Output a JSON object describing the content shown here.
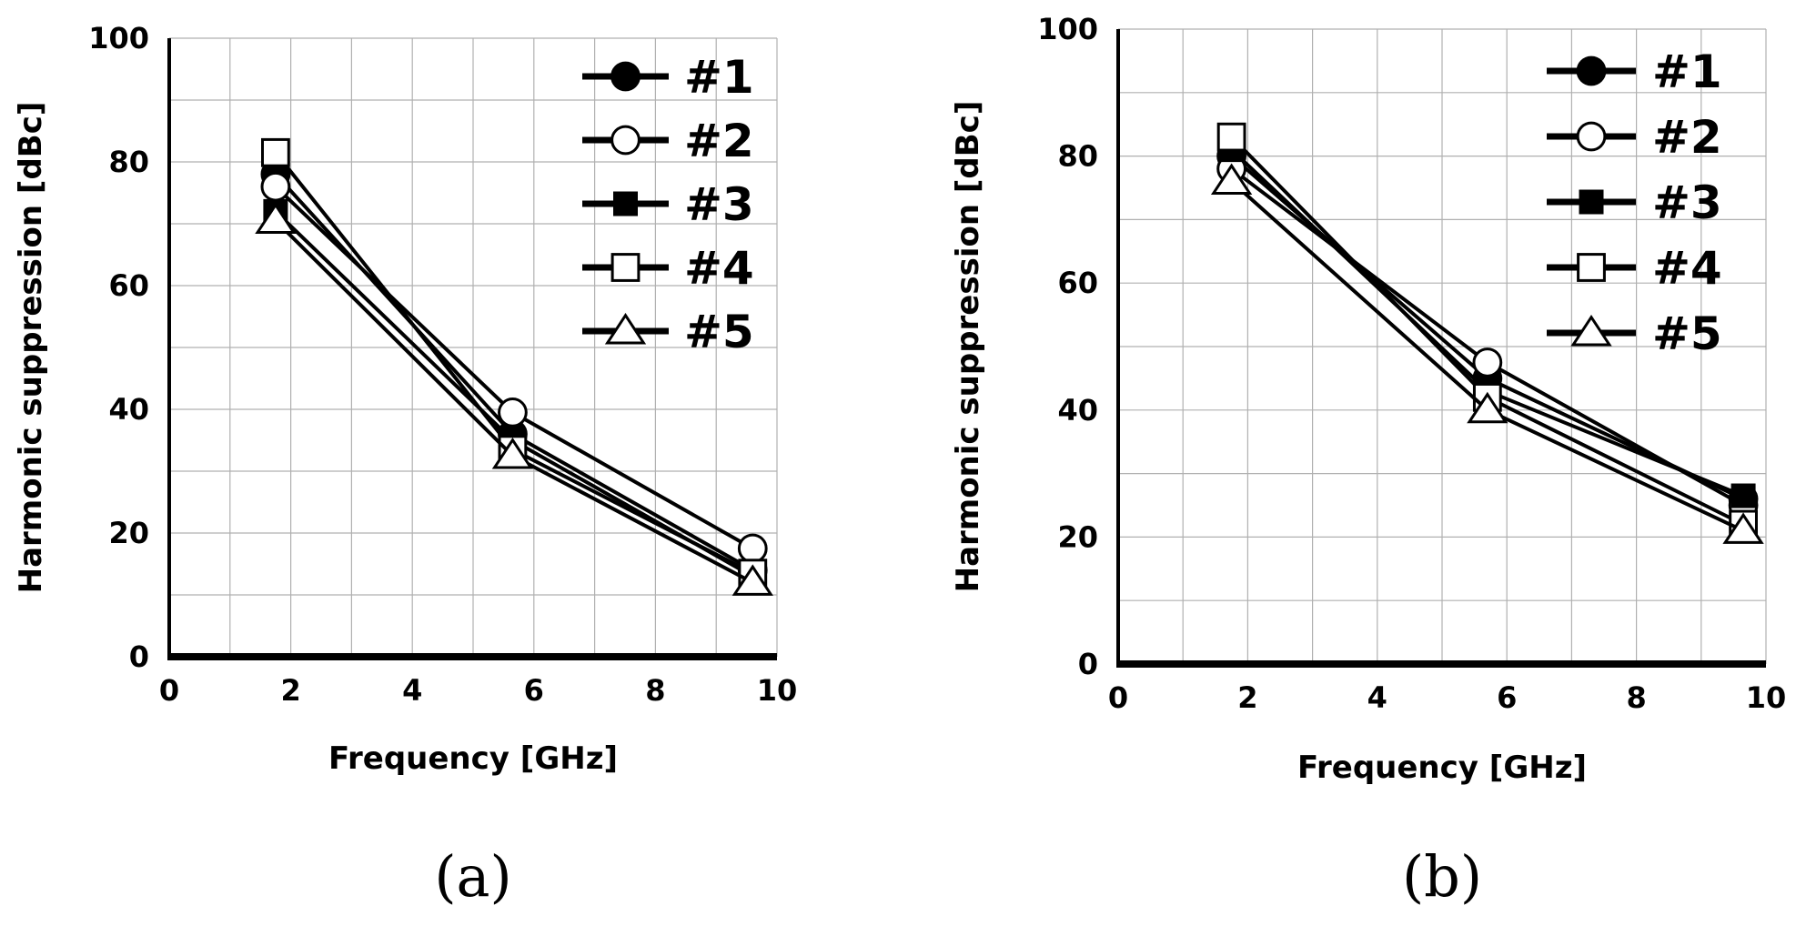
{
  "chart_data": [
    {
      "type": "line",
      "panel_label": "(a)",
      "xlabel": "Frequency [GHz]",
      "ylabel": "Harmonic suppression [dBc]",
      "xlim": [
        0,
        10
      ],
      "ylim": [
        0,
        100
      ],
      "xticks": [
        "0",
        "2",
        "4",
        "6",
        "8",
        "10"
      ],
      "yticks": [
        "0",
        "20",
        "40",
        "60",
        "80",
        "100"
      ],
      "x": [
        1.75,
        5.65,
        9.6
      ],
      "grid": true,
      "legend_position": "top-right",
      "series": [
        {
          "name": "#1",
          "marker": "filled-circle",
          "values": [
            78,
            36,
            14
          ]
        },
        {
          "name": "#2",
          "marker": "open-circle",
          "values": [
            76,
            39.5,
            17.5
          ]
        },
        {
          "name": "#3",
          "marker": "filled-square",
          "values": [
            72,
            35,
            13
          ]
        },
        {
          "name": "#4",
          "marker": "open-square",
          "values": [
            81.5,
            33.5,
            13.5
          ]
        },
        {
          "name": "#5",
          "marker": "open-triangle",
          "values": [
            70.5,
            32.5,
            12
          ]
        }
      ]
    },
    {
      "type": "line",
      "panel_label": "(b)",
      "xlabel": "Frequency [GHz]",
      "ylabel": "Harmonic suppression [dBc]",
      "xlim": [
        0,
        10
      ],
      "ylim": [
        0,
        100
      ],
      "xticks": [
        "0",
        "2",
        "4",
        "6",
        "8",
        "10"
      ],
      "yticks": [
        "0",
        "20",
        "40",
        "60",
        "80",
        "100"
      ],
      "x": [
        1.75,
        5.7,
        9.65
      ],
      "grid": true,
      "legend_position": "top-right",
      "series": [
        {
          "name": "#1",
          "marker": "filled-circle",
          "values": [
            80,
            45,
            26
          ]
        },
        {
          "name": "#2",
          "marker": "open-circle",
          "values": [
            78,
            47.5,
            25
          ]
        },
        {
          "name": "#3",
          "marker": "filled-square",
          "values": [
            81,
            43,
            26.5
          ]
        },
        {
          "name": "#4",
          "marker": "open-square",
          "values": [
            83,
            42,
            22
          ]
        },
        {
          "name": "#5",
          "marker": "open-triangle",
          "values": [
            76,
            40,
            21
          ]
        }
      ]
    }
  ]
}
